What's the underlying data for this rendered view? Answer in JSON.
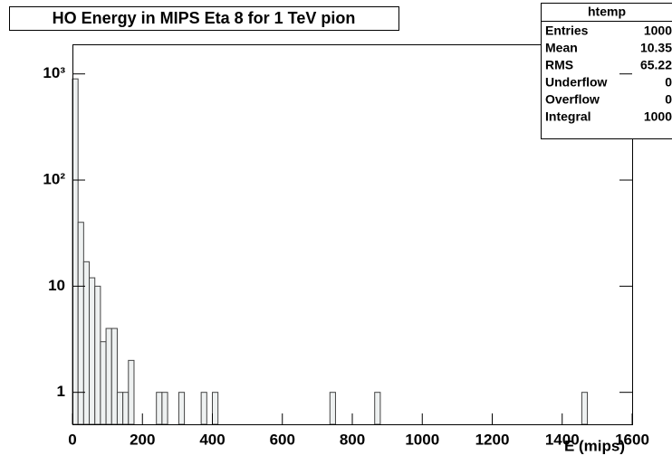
{
  "chart_data": {
    "type": "histogram",
    "title": "HO Energy in MIPS Eta 8 for 1 TeV pion",
    "x_label": "E (mips)",
    "log_y": true,
    "fill": "#eef1f1",
    "edge": "#444",
    "bins": [
      0,
      16,
      32,
      48,
      64,
      80,
      96,
      112,
      128,
      144,
      160,
      176,
      192,
      208,
      224,
      240,
      256,
      272,
      288,
      304,
      320,
      336,
      352,
      368,
      384,
      400,
      416,
      432,
      448,
      464,
      480,
      496,
      512,
      528,
      544,
      560,
      576,
      592,
      608,
      624,
      640,
      656,
      672,
      688,
      704,
      720,
      736,
      752,
      768,
      784,
      800,
      816,
      832,
      848,
      864,
      880,
      896,
      912,
      928,
      944,
      960,
      976,
      992,
      1008,
      1024,
      1040,
      1056,
      1072,
      1088,
      1104,
      1120,
      1136,
      1152,
      1168,
      1184,
      1200,
      1216,
      1232,
      1248,
      1264,
      1280,
      1296,
      1312,
      1328,
      1344,
      1360,
      1376,
      1392,
      1408,
      1424,
      1440,
      1456,
      1472,
      1488,
      1504,
      1520,
      1536,
      1552,
      1568,
      1584,
      1600
    ],
    "counts": [
      898,
      40,
      17,
      12,
      10,
      3,
      4,
      4,
      1,
      1,
      2,
      0,
      0,
      0,
      0,
      1,
      1,
      0,
      0,
      1,
      0,
      0,
      0,
      1,
      0,
      1,
      0,
      0,
      0,
      0,
      0,
      0,
      0,
      0,
      0,
      0,
      0,
      0,
      0,
      0,
      0,
      0,
      0,
      0,
      0,
      0,
      1,
      0,
      0,
      0,
      0,
      0,
      0,
      0,
      1,
      0,
      0,
      0,
      0,
      0,
      0,
      0,
      0,
      0,
      0,
      0,
      0,
      0,
      0,
      0,
      0,
      0,
      0,
      0,
      0,
      0,
      0,
      0,
      0,
      0,
      0,
      0,
      0,
      0,
      0,
      0,
      0,
      0,
      0,
      0,
      0,
      1,
      0,
      0,
      0,
      0,
      0,
      0,
      0,
      0
    ],
    "xlim": [
      0,
      1600
    ],
    "xticks": [
      0,
      200,
      400,
      600,
      800,
      1000,
      1200,
      1400,
      1600
    ],
    "ylim": [
      0.5,
      1900
    ],
    "yticks": [
      1,
      10,
      {
        "value": 100,
        "label": "10²"
      },
      {
        "value": 1000,
        "label": "10³"
      }
    ],
    "stats_title": "htemp",
    "stats": [
      [
        "Entries",
        1000
      ],
      [
        "Mean",
        10.35
      ],
      [
        "RMS",
        65.22
      ],
      [
        "Underflow",
        0
      ],
      [
        "Overflow",
        0
      ],
      [
        "Integral",
        1000
      ]
    ]
  }
}
